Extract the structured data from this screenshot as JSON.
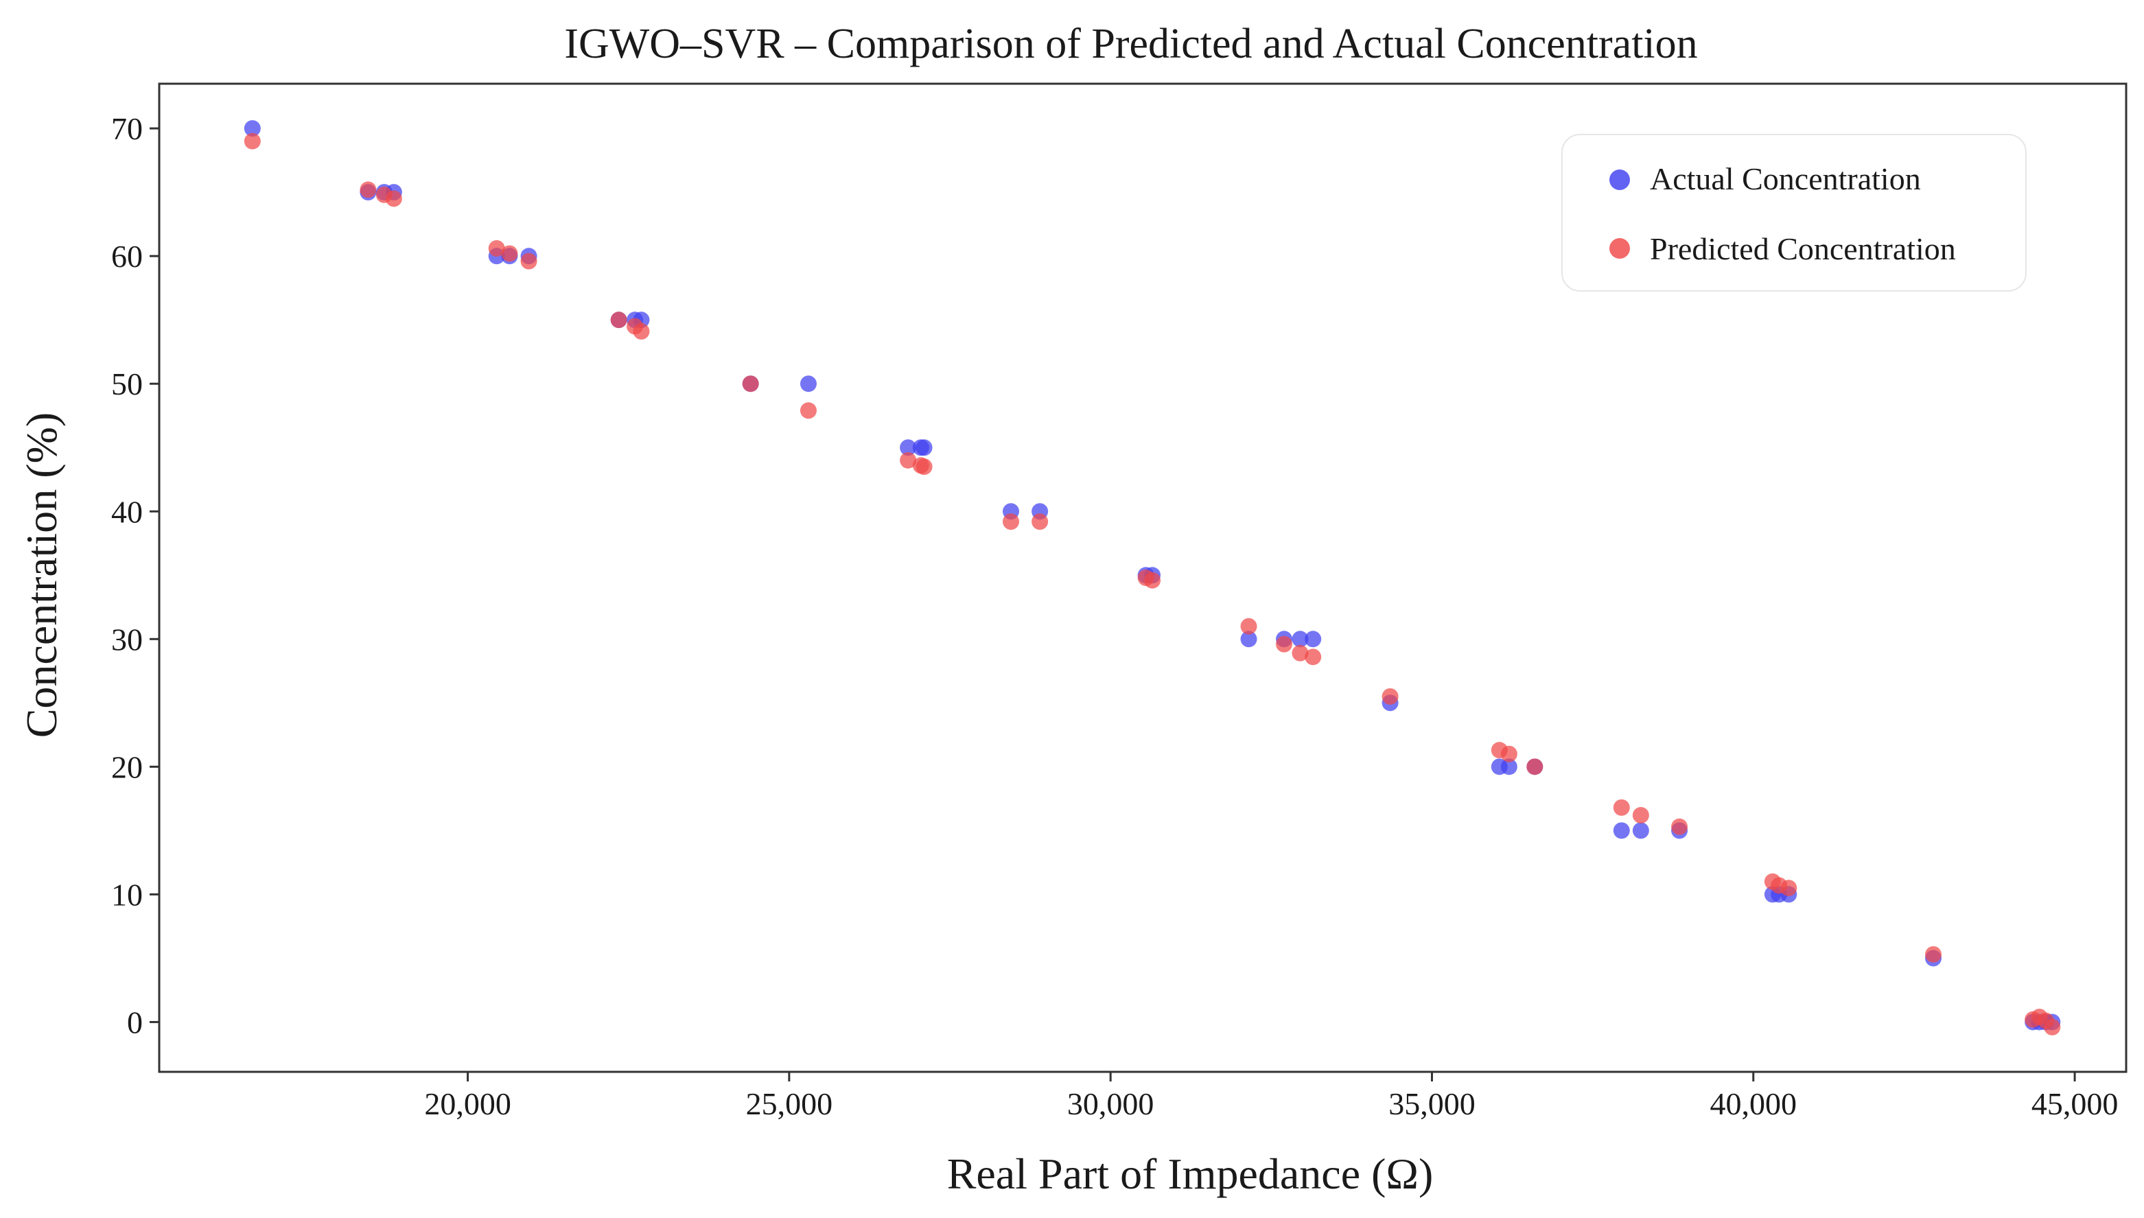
{
  "chart_data": {
    "type": "scatter",
    "title": "IGWO–SVR – Comparison of Predicted and Actual Concentration",
    "xlabel": "Real Part of Impedance (Ω)",
    "ylabel": "Concentration (%)",
    "xlim": [
      15200,
      45800
    ],
    "ylim": [
      -3.9,
      73.5
    ],
    "xticks": [
      20000,
      25000,
      30000,
      35000,
      40000,
      45000
    ],
    "xtick_labels": [
      "20,000",
      "25,000",
      "30,000",
      "35,000",
      "40,000",
      "45,000"
    ],
    "yticks": [
      0,
      10,
      20,
      30,
      40,
      50,
      60,
      70
    ],
    "ytick_labels": [
      "0",
      "10",
      "20",
      "30",
      "40",
      "50",
      "60",
      "70"
    ],
    "grid": false,
    "legend_position": "top-right",
    "series": [
      {
        "name": "Actual Concentration",
        "color": "#4040f0",
        "points": [
          [
            16650,
            70
          ],
          [
            18450,
            65
          ],
          [
            18700,
            65
          ],
          [
            18850,
            65
          ],
          [
            20450,
            60
          ],
          [
            20650,
            60
          ],
          [
            20950,
            60
          ],
          [
            22350,
            55
          ],
          [
            22600,
            55
          ],
          [
            22700,
            55
          ],
          [
            24400,
            50
          ],
          [
            25300,
            50
          ],
          [
            26850,
            45
          ],
          [
            27050,
            45
          ],
          [
            27100,
            45
          ],
          [
            28450,
            40
          ],
          [
            28900,
            40
          ],
          [
            30550,
            35
          ],
          [
            30650,
            35
          ],
          [
            32150,
            30
          ],
          [
            32700,
            30
          ],
          [
            32950,
            30
          ],
          [
            33150,
            30
          ],
          [
            34350,
            25
          ],
          [
            36050,
            20
          ],
          [
            36200,
            20
          ],
          [
            36600,
            20
          ],
          [
            37950,
            15
          ],
          [
            38250,
            15
          ],
          [
            38850,
            15
          ],
          [
            40300,
            10
          ],
          [
            40400,
            10
          ],
          [
            40550,
            10
          ],
          [
            42800,
            5
          ],
          [
            44350,
            0
          ],
          [
            44450,
            0
          ],
          [
            44550,
            0
          ],
          [
            44650,
            0
          ]
        ]
      },
      {
        "name": "Predicted Concentration",
        "color": "#f04848",
        "points": [
          [
            16650,
            69
          ],
          [
            18450,
            65.2
          ],
          [
            18700,
            64.8
          ],
          [
            18850,
            64.5
          ],
          [
            20450,
            60.6
          ],
          [
            20650,
            60.2
          ],
          [
            20950,
            59.6
          ],
          [
            22350,
            55
          ],
          [
            22600,
            54.5
          ],
          [
            22700,
            54.1
          ],
          [
            24400,
            50
          ],
          [
            25300,
            47.9
          ],
          [
            26850,
            44
          ],
          [
            27050,
            43.6
          ],
          [
            27100,
            43.5
          ],
          [
            28450,
            39.2
          ],
          [
            28900,
            39.2
          ],
          [
            30550,
            34.8
          ],
          [
            30650,
            34.6
          ],
          [
            32150,
            31
          ],
          [
            32700,
            29.6
          ],
          [
            32950,
            28.9
          ],
          [
            33150,
            28.6
          ],
          [
            34350,
            25.5
          ],
          [
            36050,
            21.3
          ],
          [
            36200,
            21
          ],
          [
            36600,
            20
          ],
          [
            37950,
            16.8
          ],
          [
            38250,
            16.2
          ],
          [
            38850,
            15.3
          ],
          [
            40300,
            11
          ],
          [
            40400,
            10.7
          ],
          [
            40550,
            10.5
          ],
          [
            42800,
            5.3
          ],
          [
            44350,
            0.2
          ],
          [
            44450,
            0.4
          ],
          [
            44550,
            0.1
          ],
          [
            44650,
            -0.4
          ]
        ]
      }
    ]
  }
}
